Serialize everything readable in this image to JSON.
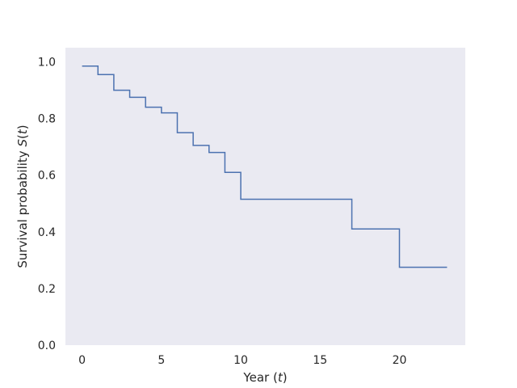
{
  "chart_data": {
    "type": "line",
    "line_shape": "step-post",
    "xlabel": "Year (t)",
    "ylabel": "Survival probability S(t)",
    "xlim": [
      -1.05,
      24.15
    ],
    "ylim": [
      0.0,
      1.05
    ],
    "xticks": [
      0,
      5,
      10,
      15,
      20
    ],
    "yticks": [
      0.0,
      0.2,
      0.4,
      0.6,
      0.8,
      1.0
    ],
    "ytick_labels": [
      "0.0",
      "0.2",
      "0.4",
      "0.6",
      "0.8",
      "1.0"
    ],
    "xtick_labels": [
      "0",
      "5",
      "10",
      "15",
      "20"
    ],
    "grid": false,
    "background_color": "#EAEAF2",
    "series": [
      {
        "color": "#4C72B0",
        "x": [
          0,
          1,
          2,
          3,
          4,
          5,
          6,
          7,
          8,
          9,
          10,
          17,
          20,
          23
        ],
        "y": [
          0.985,
          0.955,
          0.9,
          0.875,
          0.84,
          0.82,
          0.75,
          0.705,
          0.68,
          0.61,
          0.515,
          0.41,
          0.275,
          0.275
        ]
      }
    ]
  }
}
